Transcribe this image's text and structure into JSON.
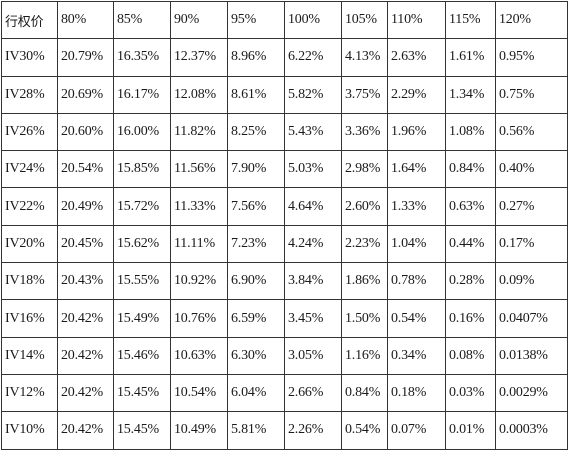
{
  "table": {
    "corner_label": "行权价",
    "columns": [
      "80%",
      "85%",
      "90%",
      "95%",
      "100%",
      "105%",
      "110%",
      "115%",
      "120%"
    ],
    "rows": [
      {
        "label": "IV30%",
        "values": [
          "20.79%",
          "16.35%",
          "12.37%",
          "8.96%",
          "6.22%",
          "4.13%",
          "2.63%",
          "1.61%",
          "0.95%"
        ]
      },
      {
        "label": "IV28%",
        "values": [
          "20.69%",
          "16.17%",
          "12.08%",
          "8.61%",
          "5.82%",
          "3.75%",
          "2.29%",
          "1.34%",
          "0.75%"
        ]
      },
      {
        "label": "IV26%",
        "values": [
          "20.60%",
          "16.00%",
          "11.82%",
          "8.25%",
          "5.43%",
          "3.36%",
          "1.96%",
          "1.08%",
          "0.56%"
        ]
      },
      {
        "label": "IV24%",
        "values": [
          "20.54%",
          "15.85%",
          "11.56%",
          "7.90%",
          "5.03%",
          "2.98%",
          "1.64%",
          "0.84%",
          "0.40%"
        ]
      },
      {
        "label": "IV22%",
        "values": [
          "20.49%",
          "15.72%",
          "11.33%",
          "7.56%",
          "4.64%",
          "2.60%",
          "1.33%",
          "0.63%",
          "0.27%"
        ]
      },
      {
        "label": "IV20%",
        "values": [
          "20.45%",
          "15.62%",
          "11.11%",
          "7.23%",
          "4.24%",
          "2.23%",
          "1.04%",
          "0.44%",
          "0.17%"
        ]
      },
      {
        "label": "IV18%",
        "values": [
          "20.43%",
          "15.55%",
          "10.92%",
          "6.90%",
          "3.84%",
          "1.86%",
          "0.78%",
          "0.28%",
          "0.09%"
        ]
      },
      {
        "label": "IV16%",
        "values": [
          "20.42%",
          "15.49%",
          "10.76%",
          "6.59%",
          "3.45%",
          "1.50%",
          "0.54%",
          "0.16%",
          "0.0407%"
        ]
      },
      {
        "label": "IV14%",
        "values": [
          "20.42%",
          "15.46%",
          "10.63%",
          "6.30%",
          "3.05%",
          "1.16%",
          "0.34%",
          "0.08%",
          "0.0138%"
        ]
      },
      {
        "label": "IV12%",
        "values": [
          "20.42%",
          "15.45%",
          "10.54%",
          "6.04%",
          "2.66%",
          "0.84%",
          "0.18%",
          "0.03%",
          "0.0029%"
        ]
      },
      {
        "label": "IV10%",
        "values": [
          "20.42%",
          "15.45%",
          "10.49%",
          "5.81%",
          "2.26%",
          "0.54%",
          "0.07%",
          "0.01%",
          "0.0003%"
        ]
      }
    ]
  }
}
